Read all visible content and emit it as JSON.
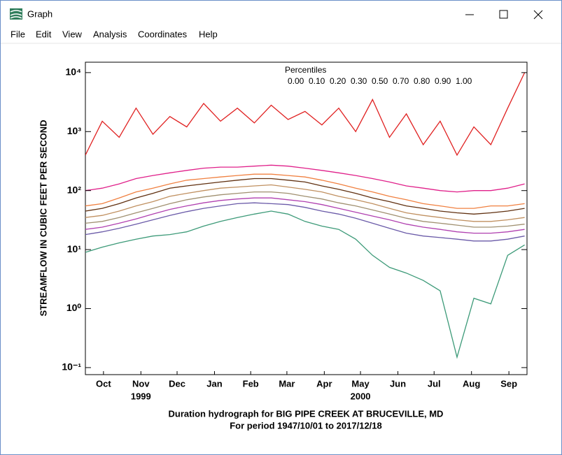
{
  "window": {
    "title": "Graph",
    "menu": [
      "File",
      "Edit",
      "View",
      "Analysis",
      "Coordinates",
      "Help"
    ]
  },
  "chart_data": {
    "type": "line",
    "title": "Duration hydrograph for BIG PIPE CREEK AT BRUCEVILLE, MD",
    "subtitle": "For period 1947/10/01 to 2017/12/18",
    "y_label": "STREAMFLOW IN CUBIC FEET PER SECOND",
    "legend_title": "Percentiles",
    "log_scale": true,
    "x": [
      0,
      14,
      28,
      42,
      56,
      70,
      84,
      98,
      112,
      126,
      140,
      154,
      168,
      182,
      196,
      210,
      224,
      238,
      252,
      266,
      280,
      294,
      308,
      322,
      336,
      350,
      364
    ],
    "xlim": [
      0,
      366
    ],
    "xticks": [
      {
        "value": 15,
        "label": "Oct"
      },
      {
        "value": 46,
        "label": "Nov"
      },
      {
        "value": 76,
        "label": "Dec"
      },
      {
        "value": 107,
        "label": "Jan"
      },
      {
        "value": 137,
        "label": "Feb"
      },
      {
        "value": 167,
        "label": "Mar"
      },
      {
        "value": 198,
        "label": "Apr"
      },
      {
        "value": 228,
        "label": "May"
      },
      {
        "value": 259,
        "label": "Jun"
      },
      {
        "value": 289,
        "label": "Jul"
      },
      {
        "value": 320,
        "label": "Aug"
      },
      {
        "value": 351,
        "label": "Sep"
      }
    ],
    "year_ticks": [
      {
        "value": 46,
        "label": "1999"
      },
      {
        "value": 228,
        "label": "2000"
      }
    ],
    "ylim": [
      0.076,
      15000
    ],
    "yticks": [
      {
        "value": 0.1,
        "label": "10⁻¹"
      },
      {
        "value": 1,
        "label": "10⁰"
      },
      {
        "value": 10,
        "label": "10¹"
      },
      {
        "value": 100,
        "label": "10²"
      },
      {
        "value": 1000,
        "label": "10³"
      },
      {
        "value": 10000,
        "label": "10⁴"
      }
    ],
    "series": [
      {
        "name": "0.00",
        "color": "#3c9a78",
        "values": [
          9,
          11,
          13,
          15,
          17,
          18,
          20,
          25,
          30,
          35,
          40,
          45,
          40,
          30,
          25,
          22,
          15,
          8,
          5,
          4,
          3,
          2,
          0.15,
          1.5,
          1.2,
          8,
          12
        ]
      },
      {
        "name": "0.10",
        "color": "#6a5aa8",
        "values": [
          18,
          20,
          23,
          27,
          32,
          38,
          44,
          50,
          55,
          60,
          62,
          60,
          58,
          52,
          45,
          40,
          34,
          28,
          23,
          19,
          17,
          16,
          15,
          14,
          14,
          15,
          17
        ]
      },
      {
        "name": "0.20",
        "color": "#b040b0",
        "values": [
          22,
          24,
          28,
          33,
          40,
          48,
          55,
          62,
          68,
          72,
          75,
          75,
          70,
          65,
          58,
          50,
          43,
          37,
          32,
          27,
          24,
          22,
          20,
          19,
          19,
          20,
          22
        ]
      },
      {
        "name": "0.30",
        "color": "#a09070",
        "values": [
          28,
          30,
          35,
          42,
          50,
          60,
          70,
          78,
          85,
          90,
          95,
          95,
          90,
          80,
          72,
          62,
          55,
          47,
          40,
          34,
          30,
          28,
          26,
          24,
          24,
          25,
          27
        ]
      },
      {
        "name": "0.50",
        "color": "#c09060",
        "values": [
          35,
          38,
          45,
          55,
          65,
          80,
          90,
          100,
          110,
          115,
          120,
          125,
          115,
          105,
          95,
          80,
          70,
          60,
          50,
          42,
          38,
          35,
          32,
          30,
          30,
          32,
          35
        ]
      },
      {
        "name": "0.70",
        "color": "#603010",
        "values": [
          45,
          50,
          60,
          75,
          90,
          110,
          120,
          130,
          140,
          150,
          160,
          160,
          150,
          140,
          120,
          105,
          90,
          75,
          65,
          55,
          50,
          45,
          42,
          40,
          42,
          45,
          50
        ]
      },
      {
        "name": "0.80",
        "color": "#f08040",
        "values": [
          55,
          60,
          75,
          95,
          110,
          130,
          150,
          160,
          170,
          180,
          190,
          190,
          180,
          170,
          150,
          130,
          110,
          95,
          80,
          70,
          60,
          55,
          50,
          50,
          55,
          55,
          60
        ]
      },
      {
        "name": "0.90",
        "color": "#e0208a",
        "values": [
          100,
          110,
          130,
          160,
          180,
          200,
          220,
          240,
          250,
          250,
          260,
          270,
          260,
          240,
          220,
          200,
          180,
          160,
          140,
          120,
          110,
          100,
          95,
          100,
          100,
          110,
          130
        ]
      },
      {
        "name": "1.00",
        "color": "#e02020",
        "values": [
          400,
          1500,
          800,
          2500,
          900,
          1800,
          1200,
          3000,
          1500,
          2500,
          1400,
          2800,
          1600,
          2200,
          1300,
          2500,
          1000,
          3500,
          800,
          2000,
          600,
          1500,
          400,
          1200,
          600,
          2500,
          10000
        ]
      }
    ]
  }
}
